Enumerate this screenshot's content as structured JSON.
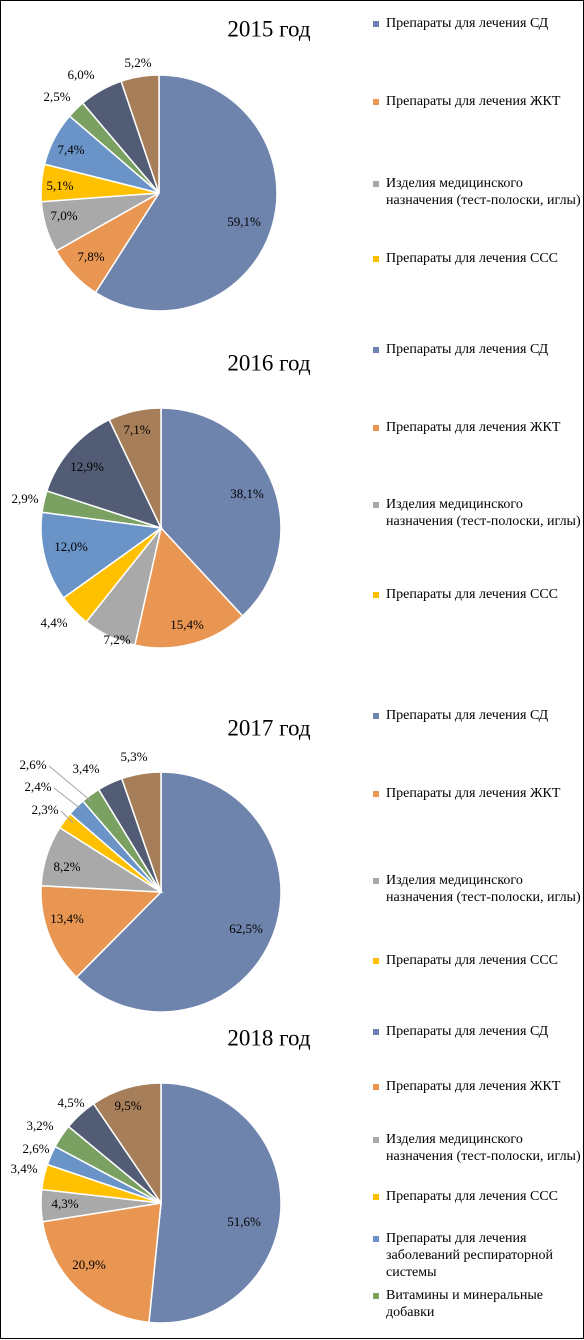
{
  "chart_data": [
    {
      "type": "pie",
      "title": "2015 год",
      "categories": [
        "Препараты для лечения СД",
        "Препараты для лечения ЖКТ",
        "Изделия медицинского назначения (тест-полоски, иглы)",
        "Препараты для лечения ССС",
        "",
        "",
        "",
        ""
      ],
      "values": [
        59.1,
        7.8,
        7.0,
        5.1,
        7.4,
        2.5,
        6.0,
        5.2
      ],
      "labels": [
        "59,1%",
        "7,8%",
        "7,0%",
        "5,1%",
        "7,4%",
        "2,5%",
        "6,0%",
        "5,2%"
      ],
      "colors": [
        "#6f84ad",
        "#e99653",
        "#a9a9a9",
        "#ffc000",
        "#6a94c7",
        "#7aa062",
        "#525d75",
        "#a67e59"
      ],
      "legend": [
        "Препараты для лечения СД",
        "Препараты для лечения ЖКТ",
        "Изделия медицинского назначения (тест-полоски, иглы)",
        "Препараты для лечения ССС"
      ],
      "legend_position": "right"
    },
    {
      "type": "pie",
      "title": "2016 год",
      "categories": [
        "Препараты для лечения СД",
        "Препараты для лечения ЖКТ",
        "Изделия медицинского назначения (тест-полоски, иглы)",
        "Препараты для лечения ССС",
        "",
        "",
        "",
        ""
      ],
      "values": [
        38.1,
        15.4,
        7.2,
        4.4,
        12.0,
        2.9,
        12.9,
        7.1
      ],
      "labels": [
        "38,1%",
        "15,4%",
        "7,2%",
        "4,4%",
        "12,0%",
        "2,9%",
        "12,9%",
        "7,1%"
      ],
      "colors": [
        "#6f84ad",
        "#e99653",
        "#a9a9a9",
        "#ffc000",
        "#6a94c7",
        "#7aa062",
        "#525d75",
        "#a67e59"
      ],
      "legend": [
        "Препараты для лечения СД",
        "Препараты для лечения ЖКТ",
        "Изделия медицинского назначения (тест-полоски, иглы)",
        "Препараты для лечения ССС"
      ],
      "legend_position": "right"
    },
    {
      "type": "pie",
      "title": "2017 год",
      "categories": [
        "Препараты для лечения СД",
        "Препараты для лечения ЖКТ",
        "Изделия медицинского назначения (тест-полоски, иглы)",
        "Препараты для лечения ССС",
        "",
        "",
        "",
        ""
      ],
      "values": [
        62.5,
        13.4,
        8.2,
        2.3,
        2.4,
        2.6,
        3.4,
        5.3
      ],
      "labels": [
        "62,5%",
        "13,4%",
        "8,2%",
        "2,3%",
        "2,4%",
        "2,6%",
        "3,4%",
        "5,3%"
      ],
      "colors": [
        "#6f84ad",
        "#e99653",
        "#a9a9a9",
        "#ffc000",
        "#6a94c7",
        "#7aa062",
        "#525d75",
        "#a67e59"
      ],
      "legend": [
        "Препараты для лечения СД",
        "Препараты для лечения ЖКТ",
        "Изделия медицинского назначения (тест-полоски, иглы)",
        "Препараты для лечения ССС"
      ],
      "legend_position": "right"
    },
    {
      "type": "pie",
      "title": "2018 год",
      "categories": [
        "Препараты для лечения СД",
        "Препараты для лечения ЖКТ",
        "Изделия медицинского назначения (тест-полоски, иглы)",
        "Препараты для лечения ССС",
        "Препараты для лечения заболеваний респираторной системы",
        "Витамины и минеральные добавки",
        "",
        ""
      ],
      "values": [
        51.6,
        20.9,
        4.3,
        3.4,
        2.6,
        3.2,
        4.5,
        9.5
      ],
      "labels": [
        "51,6%",
        "20,9%",
        "4,3%",
        "3,4%",
        "2,6%",
        "3,2%",
        "4,5%",
        "9,5%"
      ],
      "colors": [
        "#6f84ad",
        "#e99653",
        "#a9a9a9",
        "#ffc000",
        "#6a94c7",
        "#7aa062",
        "#525d75",
        "#a67e59"
      ],
      "legend": [
        "Препараты для лечения СД",
        "Препараты для лечения ЖКТ",
        "Изделия медицинского назначения (тест-полоски, иглы)",
        "Препараты для лечения ССС",
        "Препараты для лечения заболеваний респираторной системы",
        "Витамины и минеральные добавки"
      ],
      "legend_position": "right"
    }
  ]
}
